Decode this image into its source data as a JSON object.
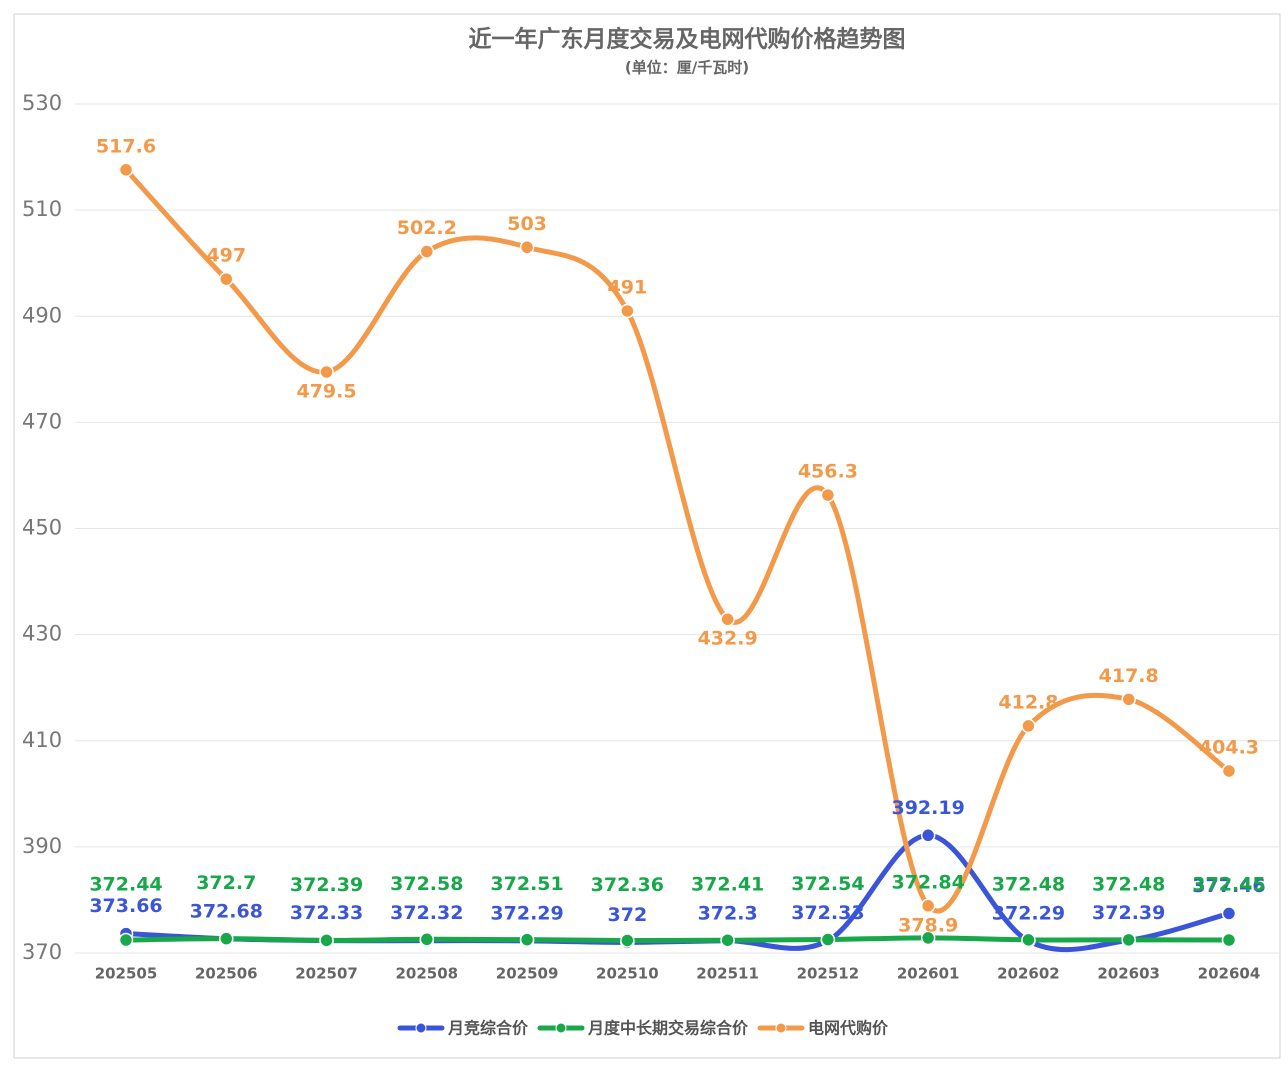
{
  "chart_data": {
    "type": "line",
    "title": "近一年广东月度交易及电网代购价格趋势图",
    "subtitle": "(单位：厘/千瓦时)",
    "categories": [
      "202505",
      "202506",
      "202507",
      "202508",
      "202509",
      "202510",
      "202511",
      "202512",
      "202601",
      "202602",
      "202603",
      "202604"
    ],
    "series": [
      {
        "name": "月竞综合价",
        "color": "#3b55d9",
        "values": [
          373.66,
          372.68,
          372.33,
          372.32,
          372.29,
          372,
          372.3,
          372.33,
          392.19,
          372.29,
          372.39,
          377.46
        ]
      },
      {
        "name": "月度中长期交易综合价",
        "color": "#18a84a",
        "values": [
          372.44,
          372.7,
          372.39,
          372.58,
          372.51,
          372.36,
          372.41,
          372.54,
          372.84,
          372.48,
          372.48,
          372.45
        ]
      },
      {
        "name": "电网代购价",
        "color": "#f39a4a",
        "values": [
          517.6,
          497,
          479.5,
          502.2,
          503,
          491,
          432.9,
          456.3,
          378.9,
          412.8,
          417.8,
          404.3
        ]
      }
    ],
    "ylim": [
      370,
      530
    ],
    "yticks": [
      370,
      390,
      410,
      430,
      450,
      470,
      490,
      510,
      530
    ],
    "grid": true,
    "smooth": true,
    "legend": "bottom"
  }
}
